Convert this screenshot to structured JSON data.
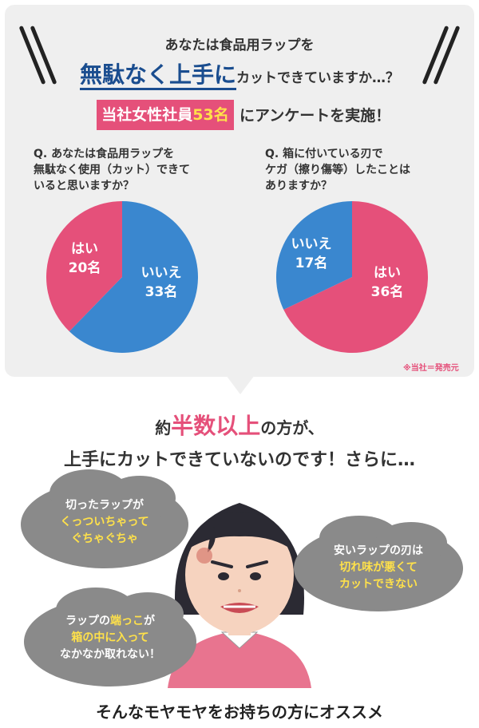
{
  "header": {
    "line1": "あなたは食品用ラップを",
    "line2_big": "無駄なく上手に",
    "line2_small": "カットできていますか…？"
  },
  "survey": {
    "prefix": "当社女性社員",
    "count": "53名",
    "suffix": "にアンケートを実施！"
  },
  "q1": {
    "question": "Q. あなたは食品用ラップを\n無駄なく使用（カット）できて\nいると思いますか？",
    "slices": [
      {
        "label": "いいえ",
        "count": "33名",
        "value": 33,
        "color": "#3a87cf"
      },
      {
        "label": "はい",
        "count": "20名",
        "value": 20,
        "color": "#e5507a"
      }
    ]
  },
  "q2": {
    "question": "Q. 箱に付いている刃で\nケガ（擦り傷等）したことは\nありますか？",
    "slices": [
      {
        "label": "はい",
        "count": "36名",
        "value": 36,
        "color": "#e5507a"
      },
      {
        "label": "いいえ",
        "count": "17名",
        "value": 17,
        "color": "#3a87cf"
      }
    ]
  },
  "note": "※当社＝発売元",
  "middle": {
    "pre": "約",
    "highlight": "半数以上",
    "post": "の方が、",
    "line2": "上手にカットできていないのです！さらに…"
  },
  "clouds": [
    {
      "line1": "切ったラップが",
      "line2": "くっついちゃって",
      "line3": "ぐちゃぐちゃ"
    },
    {
      "line1": "安いラップの刃は",
      "line2": "切れ味が悪くて",
      "line3": "カットできない"
    },
    {
      "line1a": "ラップの",
      "line1b": "端っこ",
      "line1c": "が",
      "line2": "箱の中に入って",
      "line3": "なかなか取れない！"
    }
  ],
  "bottom": "そんなモヤモヤをお持ちの方にオススメ"
}
